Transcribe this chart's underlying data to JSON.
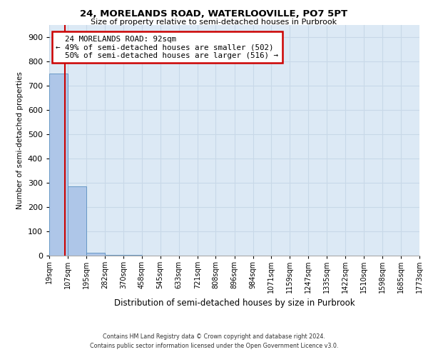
{
  "title": "24, MORELANDS ROAD, WATERLOOVILLE, PO7 5PT",
  "subtitle": "Size of property relative to semi-detached houses in Purbrook",
  "xlabel": "Distribution of semi-detached houses by size in Purbrook",
  "ylabel": "Number of semi-detached properties",
  "property_size": 92,
  "property_label": "24 MORELANDS ROAD: 92sqm",
  "pct_smaller": 49,
  "n_smaller": 502,
  "pct_larger": 50,
  "n_larger": 516,
  "bin_edges": [
    19,
    107,
    195,
    282,
    370,
    458,
    545,
    633,
    721,
    808,
    896,
    984,
    1071,
    1159,
    1247,
    1335,
    1422,
    1510,
    1598,
    1685,
    1773
  ],
  "bin_labels": [
    "19sqm",
    "107sqm",
    "195sqm",
    "282sqm",
    "370sqm",
    "458sqm",
    "545sqm",
    "633sqm",
    "721sqm",
    "808sqm",
    "896sqm",
    "984sqm",
    "1071sqm",
    "1159sqm",
    "1247sqm",
    "1335sqm",
    "1422sqm",
    "1510sqm",
    "1598sqm",
    "1685sqm",
    "1773sqm"
  ],
  "bar_heights": [
    750,
    285,
    10,
    2,
    1,
    0,
    0,
    0,
    0,
    0,
    0,
    0,
    0,
    0,
    0,
    0,
    0,
    0,
    0,
    0
  ],
  "bar_color": "#aec6e8",
  "bar_edge_color": "#5a8fc0",
  "grid_color": "#c8d8e8",
  "background_color": "#dce9f5",
  "red_line_color": "#cc0000",
  "annotation_box_color": "#cc0000",
  "ylim": [
    0,
    950
  ],
  "yticks": [
    0,
    100,
    200,
    300,
    400,
    500,
    600,
    700,
    800,
    900
  ],
  "footer_line1": "Contains HM Land Registry data © Crown copyright and database right 2024.",
  "footer_line2": "Contains public sector information licensed under the Open Government Licence v3.0."
}
